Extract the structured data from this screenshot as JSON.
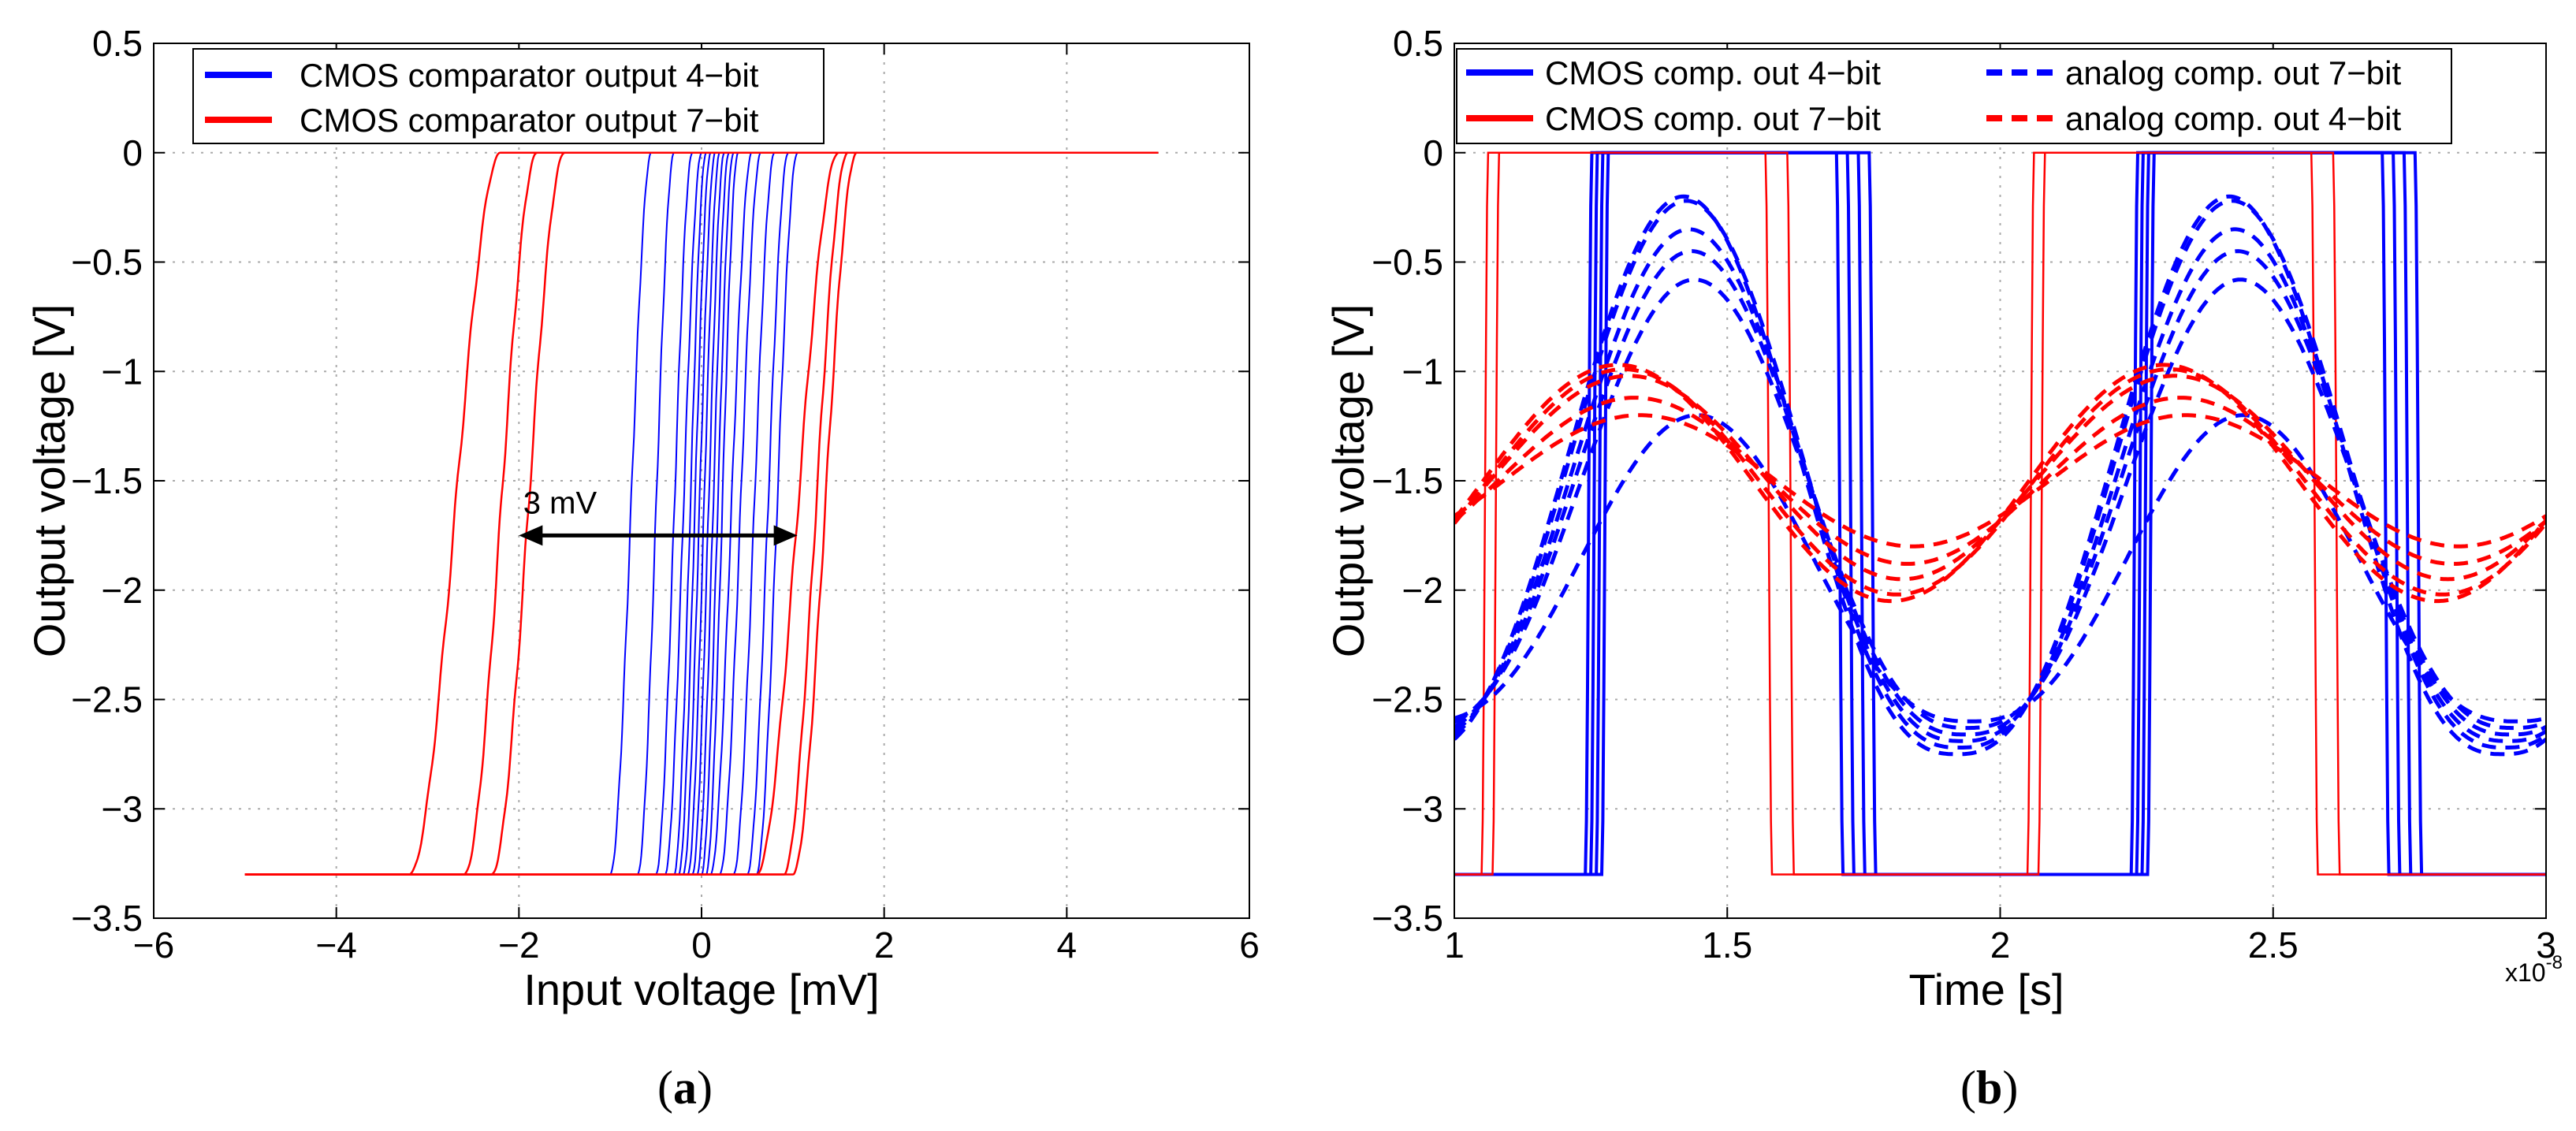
{
  "chart_data": [
    {
      "id": "a",
      "type": "line",
      "caption_paren_open": "(",
      "caption_letter": "a",
      "caption_paren_close": ")",
      "xlabel": "Input voltage [mV]",
      "ylabel": "Output voltage [V]",
      "xlim": [
        -6,
        6
      ],
      "ylim": [
        -3.5,
        0.5
      ],
      "xticks": [
        -6,
        -4,
        -2,
        0,
        2,
        4,
        6
      ],
      "xtick_labels": [
        "−6",
        "−4",
        "−2",
        "0",
        "2",
        "4",
        "6"
      ],
      "yticks": [
        0.5,
        0,
        -0.5,
        -1,
        -1.5,
        -2,
        -2.5,
        -3,
        -3.5
      ],
      "ytick_labels": [
        "0.5",
        "0",
        "−0.5",
        "−1",
        "−1.5",
        "−2",
        "−2.5",
        "−3",
        "−3.5"
      ],
      "grid": true,
      "legend_position": "top-left",
      "legend": [
        {
          "label": "CMOS comparator output 4−bit",
          "color": "#0000ff",
          "style": "solid"
        },
        {
          "label": "CMOS comparator output 7−bit",
          "color": "#ff0000",
          "style": "solid"
        }
      ],
      "annotation": {
        "text": "3 mV",
        "x1": -2.0,
        "x2": 1.05,
        "y": -1.75
      },
      "series": [
        {
          "name": "CMOS comparator output 4-bit",
          "color": "#0000ff",
          "width": 2,
          "curves": [
            {
              "lo": -1.0,
              "hi": -0.55
            },
            {
              "lo": -0.7,
              "hi": -0.3
            },
            {
              "lo": -0.5,
              "hi": -0.1
            },
            {
              "lo": -0.4,
              "hi": 0.0
            },
            {
              "lo": -0.3,
              "hi": 0.05
            },
            {
              "lo": -0.25,
              "hi": 0.1
            },
            {
              "lo": -0.2,
              "hi": 0.15
            },
            {
              "lo": -0.15,
              "hi": 0.2
            },
            {
              "lo": -0.1,
              "hi": 0.25
            },
            {
              "lo": -0.05,
              "hi": 0.3
            },
            {
              "lo": 0.0,
              "hi": 0.35
            },
            {
              "lo": 0.05,
              "hi": 0.4
            },
            {
              "lo": 0.1,
              "hi": 0.55
            },
            {
              "lo": 0.2,
              "hi": 0.65
            },
            {
              "lo": 0.35,
              "hi": 0.8
            },
            {
              "lo": 0.5,
              "hi": 0.95
            },
            {
              "lo": 0.6,
              "hi": 1.05
            }
          ]
        },
        {
          "name": "CMOS comparator output 7-bit",
          "color": "#ff0000",
          "width": 2.5,
          "curves": [
            {
              "lo": -3.2,
              "hi": -2.2
            },
            {
              "lo": -2.6,
              "hi": -1.8
            },
            {
              "lo": -2.3,
              "hi": -1.5
            },
            {
              "lo": 0.6,
              "hi": 1.5
            },
            {
              "lo": 0.9,
              "hi": 1.6
            },
            {
              "lo": 1.0,
              "hi": 1.7
            }
          ]
        }
      ]
    },
    {
      "id": "b",
      "type": "line",
      "caption_paren_open": "(",
      "caption_letter": "b",
      "caption_paren_close": ")",
      "xlabel": "Time [s]",
      "ylabel": "Output voltage [V]",
      "x_multiplier_base": "x10",
      "x_multiplier_exp": "-8",
      "xlim": [
        1,
        3
      ],
      "ylim": [
        -3.5,
        0.5
      ],
      "xticks": [
        1,
        1.5,
        2,
        2.5,
        3
      ],
      "xtick_labels": [
        "1",
        "1.5",
        "2",
        "2.5",
        "3"
      ],
      "yticks": [
        0.5,
        0,
        -0.5,
        -1,
        -1.5,
        -2,
        -2.5,
        -3,
        -3.5
      ],
      "ytick_labels": [
        "0.5",
        "0",
        "−0.5",
        "−1",
        "−1.5",
        "−2",
        "−2.5",
        "−3",
        "−3.5"
      ],
      "grid": true,
      "legend_position": "top",
      "legend": [
        {
          "label": "CMOS comp. out  4−bit",
          "color": "#0000ff",
          "style": "solid"
        },
        {
          "label": "CMOS comp. out  7−bit",
          "color": "#ff0000",
          "style": "solid"
        },
        {
          "label": "analog comp. out 7−bit",
          "color": "#0000ff",
          "style": "dashed"
        },
        {
          "label": "analog comp. out 4−bit",
          "color": "#ff0000",
          "style": "dashed"
        }
      ],
      "period": 1.0,
      "series": [
        {
          "name": "CMOS comp. out 4-bit",
          "color": "#0000ff",
          "style": "solid",
          "rise_times": [
            1.24,
            1.25,
            1.26,
            1.27
          ],
          "fall_times": [
            1.7,
            1.72,
            1.74,
            1.76
          ]
        },
        {
          "name": "CMOS comp. out 7-bit",
          "color": "#ff0000",
          "style": "solid",
          "rise_times": [
            1.05,
            1.07
          ],
          "fall_times": [
            1.57,
            1.61
          ]
        },
        {
          "name": "analog comp. out 7-bit",
          "color": "#0000ff",
          "style": "dashed",
          "peak_time": 1.42,
          "peaks": [
            -0.2,
            -0.22,
            -0.35,
            -0.45,
            -0.58,
            -1.2
          ],
          "min": -2.75
        },
        {
          "name": "analog comp. out 4-bit",
          "color": "#ff0000",
          "style": "dashed",
          "peak_time": 1.3,
          "peaks": [
            -0.97,
            -0.99,
            -1.02,
            -1.12,
            -1.2
          ],
          "troughs": [
            -2.05,
            -2.02,
            -1.95,
            -1.88,
            -1.8
          ]
        }
      ]
    }
  ]
}
